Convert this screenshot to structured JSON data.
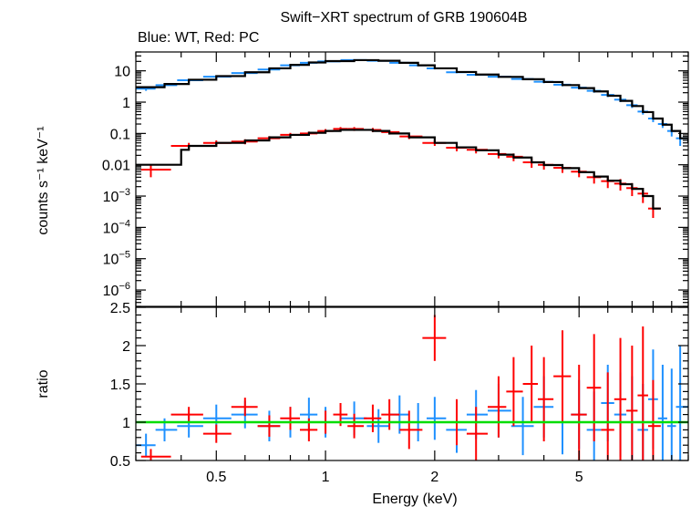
{
  "chart_data": {
    "type": "scatter",
    "title": "Swift−XRT spectrum of GRB 190604B",
    "subtitle": "Blue: WT, Red: PC",
    "xlabel": "Energy (keV)",
    "x_scale": "log",
    "xlim": [
      0.3,
      10
    ],
    "x_ticks": [
      {
        "value": 0.5,
        "label": "0.5"
      },
      {
        "value": 1,
        "label": "1"
      },
      {
        "value": 2,
        "label": "2"
      },
      {
        "value": 5,
        "label": "5"
      }
    ],
    "colors": {
      "wt": "#1e90ff",
      "pc": "#ff0000",
      "model": "#000000",
      "unity": "#00dd00"
    },
    "panels": [
      {
        "id": "spectrum",
        "ylabel": "counts s⁻¹ keV⁻¹",
        "y_scale": "log",
        "ylim": [
          3e-07,
          40
        ],
        "y_ticks": [
          {
            "value": 10,
            "label": "10"
          },
          {
            "value": 1,
            "label": "1"
          },
          {
            "value": 0.1,
            "label": "0.1"
          },
          {
            "value": 0.01,
            "label": "0.01"
          },
          {
            "value": 0.001,
            "base": "10",
            "exp": "−3"
          },
          {
            "value": 0.0001,
            "base": "10",
            "exp": "−4"
          },
          {
            "value": 1e-05,
            "base": "10",
            "exp": "−5"
          },
          {
            "value": 1e-06,
            "base": "10",
            "exp": "−6"
          }
        ],
        "series": [
          {
            "key": "wt",
            "type": "errorbar",
            "x": [
              0.32,
              0.36,
              0.42,
              0.5,
              0.6,
              0.7,
              0.8,
              0.9,
              1.0,
              1.2,
              1.4,
              1.6,
              1.8,
              2.0,
              2.3,
              2.6,
              3.0,
              3.5,
              4.0,
              4.5,
              5.0,
              5.5,
              6.0,
              6.5,
              7.0,
              7.5,
              8.0,
              8.5,
              9.0,
              9.5
            ],
            "y": [
              2.7,
              3.5,
              5.0,
              6.5,
              8.5,
              11,
              15,
              18,
              20,
              22,
              21,
              18,
              15,
              12,
              9,
              7.5,
              6.5,
              5.5,
              4.5,
              3.6,
              2.9,
              2.3,
              1.7,
              1.2,
              0.8,
              0.5,
              0.3,
              0.2,
              0.12,
              0.07
            ],
            "yerr": [
              0.4,
              0.4,
              0.5,
              0.6,
              0.7,
              0.8,
              1.0,
              1.2,
              1.2,
              1.3,
              1.3,
              1.2,
              1.0,
              0.9,
              0.7,
              0.6,
              0.6,
              0.5,
              0.5,
              0.4,
              0.35,
              0.3,
              0.25,
              0.2,
              0.15,
              0.1,
              0.07,
              0.05,
              0.04,
              0.03
            ]
          },
          {
            "key": "pc",
            "type": "errorbar",
            "x": [
              0.33,
              0.42,
              0.5,
              0.6,
              0.7,
              0.8,
              0.9,
              1.0,
              1.1,
              1.2,
              1.35,
              1.5,
              1.7,
              2.0,
              2.3,
              2.6,
              3.0,
              3.3,
              3.7,
              4.0,
              4.5,
              5.0,
              5.5,
              6.0,
              6.5,
              7.0,
              7.5,
              8.0
            ],
            "y": [
              0.007,
              0.04,
              0.05,
              0.055,
              0.07,
              0.09,
              0.1,
              0.12,
              0.14,
              0.14,
              0.13,
              0.11,
              0.08,
              0.05,
              0.035,
              0.03,
              0.022,
              0.018,
              0.012,
              0.01,
              0.008,
              0.006,
              0.004,
              0.003,
              0.0025,
              0.0018,
              0.0012,
              0.0004
            ],
            "yerr": [
              0.003,
              0.01,
              0.01,
              0.01,
              0.012,
              0.014,
              0.015,
              0.018,
              0.02,
              0.02,
              0.02,
              0.018,
              0.014,
              0.01,
              0.008,
              0.007,
              0.006,
              0.005,
              0.004,
              0.003,
              0.0025,
              0.002,
              0.0015,
              0.0012,
              0.001,
              0.0008,
              0.0006,
              0.0002
            ]
          },
          {
            "key": "model",
            "type": "step",
            "x": [
              0.3,
              0.36,
              0.42,
              0.5,
              0.6,
              0.7,
              0.8,
              0.9,
              1.0,
              1.2,
              1.4,
              1.6,
              1.8,
              2.0,
              2.3,
              2.6,
              3.0,
              3.5,
              4.0,
              4.5,
              5.0,
              5.5,
              6.0,
              6.5,
              7.0,
              7.5,
              8.0,
              8.5,
              9.0,
              9.5,
              10
            ],
            "y": [
              3.0,
              3.8,
              5.2,
              6.8,
              9,
              12,
              15.5,
              18.5,
              20.5,
              22,
              21,
              18,
              15,
              12,
              9.2,
              7.6,
              6.4,
              5.4,
              4.4,
              3.5,
              2.8,
              2.2,
              1.6,
              1.1,
              0.75,
              0.48,
              0.3,
              0.19,
              0.12,
              0.07,
              0.05
            ]
          },
          {
            "key": "model",
            "type": "step",
            "x": [
              0.3,
              0.4,
              0.42,
              0.5,
              0.6,
              0.7,
              0.8,
              0.9,
              1.0,
              1.1,
              1.2,
              1.35,
              1.5,
              1.7,
              2.0,
              2.3,
              2.6,
              3.0,
              3.3,
              3.7,
              4.0,
              4.5,
              5.0,
              5.5,
              6.0,
              6.5,
              7.0,
              7.5,
              8.0,
              8.4
            ],
            "y": [
              0.01,
              0.03,
              0.04,
              0.05,
              0.06,
              0.075,
              0.09,
              0.105,
              0.12,
              0.13,
              0.13,
              0.12,
              0.1,
              0.075,
              0.05,
              0.036,
              0.029,
              0.021,
              0.017,
              0.012,
              0.0098,
              0.0078,
              0.0058,
              0.0042,
              0.0031,
              0.0024,
              0.0017,
              0.001,
              0.0004,
              0.0004
            ]
          }
        ]
      },
      {
        "id": "ratio",
        "ylabel": "ratio",
        "y_scale": "linear",
        "ylim": [
          0.5,
          2.5
        ],
        "y_ticks": [
          {
            "value": 0.5,
            "label": "0.5"
          },
          {
            "value": 1,
            "label": "1"
          },
          {
            "value": 1.5,
            "label": "1.5"
          },
          {
            "value": 2,
            "label": "2"
          },
          {
            "value": 2.5,
            "label": "2.5"
          }
        ],
        "reference_line": 1,
        "series": [
          {
            "key": "wt",
            "type": "errorbar",
            "x": [
              0.32,
              0.36,
              0.42,
              0.5,
              0.6,
              0.7,
              0.8,
              0.9,
              1.0,
              1.2,
              1.4,
              1.6,
              1.8,
              2.0,
              2.3,
              2.6,
              3.0,
              3.5,
              4.0,
              4.5,
              5.0,
              5.5,
              6.0,
              6.5,
              7.0,
              7.5,
              8.0,
              8.5,
              9.0,
              9.5
            ],
            "y": [
              0.7,
              0.9,
              0.95,
              1.05,
              1.1,
              0.95,
              1.0,
              1.1,
              1.0,
              1.05,
              0.95,
              1.1,
              1.0,
              1.05,
              0.9,
              1.1,
              1.15,
              0.95,
              1.2,
              1.0,
              1.1,
              0.9,
              1.25,
              1.1,
              1.0,
              0.9,
              1.3,
              1.05,
              0.95,
              1.2
            ],
            "yerr": [
              0.15,
              0.15,
              0.15,
              0.18,
              0.18,
              0.2,
              0.2,
              0.22,
              0.2,
              0.22,
              0.22,
              0.25,
              0.25,
              0.28,
              0.3,
              0.32,
              0.35,
              0.38,
              0.4,
              0.42,
              0.45,
              0.5,
              0.5,
              0.55,
              0.6,
              0.6,
              0.65,
              0.7,
              0.75,
              0.8
            ]
          },
          {
            "key": "pc",
            "type": "errorbar",
            "x": [
              0.33,
              0.42,
              0.5,
              0.6,
              0.7,
              0.8,
              0.9,
              1.0,
              1.1,
              1.2,
              1.35,
              1.5,
              1.7,
              2.0,
              2.3,
              2.6,
              3.0,
              3.3,
              3.7,
              4.0,
              4.5,
              5.0,
              5.5,
              6.0,
              6.5,
              7.0,
              7.5,
              8.0
            ],
            "y": [
              0.55,
              1.1,
              0.85,
              1.2,
              0.95,
              1.05,
              0.9,
              1.0,
              1.1,
              0.95,
              1.05,
              1.1,
              0.9,
              2.1,
              1.0,
              0.85,
              1.2,
              1.4,
              1.5,
              1.3,
              1.6,
              1.1,
              1.45,
              0.9,
              1.3,
              1.15,
              1.35,
              0.95
            ],
            "yerr": [
              0.1,
              0.1,
              0.12,
              0.12,
              0.14,
              0.15,
              0.15,
              0.15,
              0.15,
              0.16,
              0.18,
              0.2,
              0.25,
              0.3,
              0.3,
              0.35,
              0.4,
              0.45,
              0.5,
              0.55,
              0.6,
              0.65,
              0.7,
              0.75,
              0.8,
              0.85,
              0.9,
              0.6
            ]
          }
        ]
      }
    ]
  }
}
